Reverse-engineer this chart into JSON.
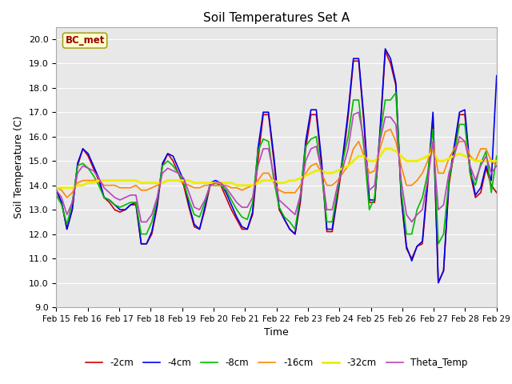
{
  "title": "Soil Temperatures Set A",
  "xlabel": "Time",
  "ylabel": "Soil Temperature (C)",
  "ylim": [
    9.0,
    20.5
  ],
  "yticks": [
    9.0,
    10.0,
    11.0,
    12.0,
    13.0,
    14.0,
    15.0,
    16.0,
    17.0,
    18.0,
    19.0,
    20.0
  ],
  "xtick_labels": [
    "Feb 15",
    "Feb 16",
    "Feb 17",
    "Feb 18",
    "Feb 19",
    "Feb 20",
    "Feb 21",
    "Feb 22",
    "Feb 23",
    "Feb 24",
    "Feb 25",
    "Feb 26",
    "Feb 27",
    "Feb 28",
    "Feb 29"
  ],
  "annotation_text": "BC_met",
  "fig_bg_color": "#ffffff",
  "plot_bg_color": "#e8e8e8",
  "grid_color": "#ffffff",
  "series": {
    "-2cm": {
      "color": "#cc0000",
      "linewidth": 1.2,
      "y": [
        13.8,
        13.3,
        12.2,
        13.0,
        14.8,
        15.5,
        15.2,
        14.7,
        14.2,
        13.5,
        13.3,
        13.0,
        12.9,
        13.0,
        13.2,
        13.2,
        11.6,
        11.6,
        12.0,
        13.1,
        14.8,
        15.3,
        15.0,
        14.5,
        14.0,
        13.1,
        12.3,
        12.2,
        13.0,
        14.0,
        14.1,
        14.0,
        13.5,
        13.0,
        12.6,
        12.2,
        12.2,
        12.8,
        15.0,
        16.9,
        16.9,
        15.0,
        13.0,
        12.6,
        12.2,
        12.0,
        13.3,
        15.5,
        16.9,
        16.9,
        14.8,
        12.1,
        12.1,
        13.5,
        15.0,
        16.8,
        19.1,
        19.1,
        16.5,
        13.3,
        13.3,
        16.0,
        19.5,
        19.0,
        18.1,
        13.5,
        11.4,
        11.0,
        11.5,
        11.6,
        14.0,
        16.8,
        10.0,
        10.5,
        14.0,
        15.4,
        16.9,
        16.9,
        14.5,
        13.5,
        13.7,
        14.7,
        14.0,
        13.7
      ]
    },
    "-4cm": {
      "color": "#0000ee",
      "linewidth": 1.2,
      "y": [
        13.8,
        13.3,
        12.2,
        13.0,
        14.9,
        15.5,
        15.3,
        14.8,
        14.3,
        13.5,
        13.4,
        13.2,
        13.0,
        13.0,
        13.2,
        13.3,
        11.6,
        11.6,
        12.1,
        13.2,
        14.9,
        15.3,
        15.2,
        14.7,
        14.2,
        13.2,
        12.4,
        12.2,
        13.1,
        14.1,
        14.2,
        14.1,
        13.7,
        13.2,
        12.7,
        12.3,
        12.2,
        12.9,
        15.5,
        17.0,
        17.0,
        15.2,
        13.1,
        12.6,
        12.2,
        12.0,
        13.5,
        15.8,
        17.1,
        17.1,
        15.0,
        12.2,
        12.2,
        13.7,
        15.2,
        17.0,
        19.2,
        19.2,
        16.7,
        13.4,
        13.4,
        16.2,
        19.6,
        19.2,
        18.2,
        13.6,
        11.5,
        10.9,
        11.5,
        11.7,
        14.2,
        17.0,
        10.0,
        10.5,
        14.2,
        15.6,
        17.0,
        17.1,
        14.7,
        13.6,
        13.9,
        14.8,
        14.2,
        18.5
      ]
    },
    "-8cm": {
      "color": "#00bb00",
      "linewidth": 1.2,
      "y": [
        13.6,
        13.2,
        12.4,
        13.3,
        14.8,
        14.9,
        14.7,
        14.4,
        14.0,
        13.5,
        13.4,
        13.2,
        13.1,
        13.2,
        13.3,
        13.3,
        12.0,
        12.0,
        12.5,
        13.4,
        14.8,
        15.0,
        14.8,
        14.5,
        14.1,
        13.4,
        12.8,
        12.7,
        13.3,
        14.0,
        14.0,
        14.0,
        13.8,
        13.4,
        13.0,
        12.7,
        12.6,
        13.3,
        15.4,
        15.9,
        15.8,
        14.2,
        13.1,
        12.7,
        12.5,
        12.2,
        13.6,
        15.6,
        15.9,
        16.0,
        14.5,
        12.5,
        12.5,
        13.8,
        15.0,
        16.0,
        17.5,
        17.5,
        15.5,
        13.0,
        13.5,
        16.0,
        17.5,
        17.5,
        17.8,
        13.8,
        12.0,
        12.0,
        13.0,
        13.5,
        14.5,
        16.3,
        11.6,
        12.0,
        14.2,
        15.3,
        16.5,
        16.5,
        14.5,
        14.0,
        14.9,
        15.4,
        13.7,
        15.2
      ]
    },
    "-16cm": {
      "color": "#ff8800",
      "linewidth": 1.2,
      "y": [
        13.9,
        13.8,
        13.5,
        13.7,
        14.1,
        14.2,
        14.2,
        14.2,
        14.2,
        14.0,
        14.0,
        14.0,
        13.9,
        13.9,
        13.9,
        14.0,
        13.8,
        13.8,
        13.9,
        14.0,
        14.1,
        14.2,
        14.2,
        14.2,
        14.1,
        14.0,
        13.9,
        13.9,
        14.0,
        14.0,
        14.0,
        14.0,
        14.0,
        13.9,
        13.9,
        13.8,
        13.9,
        14.0,
        14.2,
        14.5,
        14.5,
        14.1,
        13.8,
        13.7,
        13.7,
        13.7,
        14.0,
        14.5,
        14.8,
        14.9,
        14.5,
        14.0,
        14.0,
        14.2,
        14.5,
        14.8,
        15.5,
        15.8,
        15.2,
        14.5,
        14.6,
        15.5,
        16.2,
        16.3,
        15.8,
        14.8,
        14.0,
        14.0,
        14.2,
        14.5,
        15.0,
        15.8,
        14.5,
        14.5,
        15.1,
        15.5,
        15.8,
        15.8,
        15.2,
        15.0,
        15.5,
        15.5,
        15.0,
        14.8
      ]
    },
    "-32cm": {
      "color": "#eeee00",
      "linewidth": 2.0,
      "y": [
        13.9,
        13.9,
        13.9,
        13.9,
        14.0,
        14.0,
        14.1,
        14.1,
        14.2,
        14.2,
        14.2,
        14.2,
        14.2,
        14.2,
        14.2,
        14.2,
        14.1,
        14.1,
        14.1,
        14.1,
        14.1,
        14.2,
        14.2,
        14.2,
        14.2,
        14.2,
        14.1,
        14.1,
        14.1,
        14.1,
        14.1,
        14.1,
        14.1,
        14.1,
        14.0,
        14.0,
        14.0,
        14.0,
        14.1,
        14.2,
        14.2,
        14.2,
        14.1,
        14.1,
        14.2,
        14.2,
        14.3,
        14.4,
        14.5,
        14.6,
        14.6,
        14.5,
        14.5,
        14.6,
        14.7,
        14.8,
        15.0,
        15.2,
        15.2,
        15.0,
        15.0,
        15.2,
        15.5,
        15.5,
        15.4,
        15.2,
        15.0,
        15.0,
        15.0,
        15.1,
        15.2,
        15.4,
        15.0,
        15.0,
        15.1,
        15.2,
        15.3,
        15.2,
        15.1,
        15.0,
        15.0,
        15.0,
        15.0,
        15.0
      ]
    },
    "Theta_Temp": {
      "color": "#bb44bb",
      "linewidth": 1.2,
      "y": [
        13.8,
        13.5,
        12.8,
        13.3,
        14.5,
        14.8,
        14.7,
        14.6,
        14.3,
        13.9,
        13.7,
        13.5,
        13.4,
        13.5,
        13.6,
        13.6,
        12.5,
        12.5,
        12.8,
        13.5,
        14.5,
        14.7,
        14.6,
        14.5,
        14.3,
        13.7,
        13.1,
        13.0,
        13.4,
        14.0,
        14.1,
        14.1,
        13.9,
        13.6,
        13.3,
        13.1,
        13.1,
        13.5,
        14.8,
        15.5,
        15.5,
        14.4,
        13.4,
        13.2,
        13.0,
        12.8,
        13.6,
        15.0,
        15.5,
        15.6,
        14.6,
        13.0,
        13.0,
        14.0,
        14.7,
        15.5,
        16.9,
        17.0,
        15.8,
        13.8,
        14.0,
        15.8,
        16.8,
        16.8,
        16.5,
        14.2,
        12.8,
        12.5,
        12.8,
        13.0,
        14.2,
        15.8,
        13.0,
        13.2,
        14.5,
        15.2,
        16.0,
        15.8,
        14.8,
        14.2,
        14.8,
        15.2,
        14.5,
        14.8
      ]
    }
  },
  "legend_order": [
    "-2cm",
    "-4cm",
    "-8cm",
    "-16cm",
    "-32cm",
    "Theta_Temp"
  ],
  "n_points": 84,
  "days": 14
}
